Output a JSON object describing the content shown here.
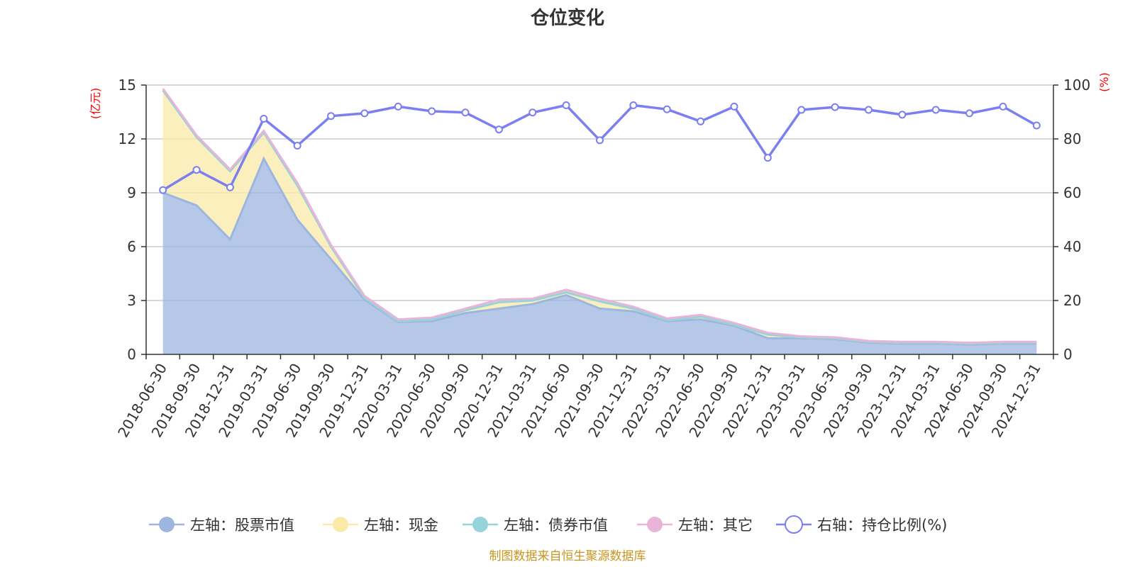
{
  "chart_data": {
    "type": "area",
    "title": "仓位变化",
    "source_note": "制图数据来自恒生聚源数据库",
    "left_axis": {
      "unit": "(亿元)",
      "ylim": [
        0,
        15
      ],
      "ticks": [
        "0",
        "3",
        "6",
        "9",
        "12",
        "15"
      ]
    },
    "right_axis": {
      "unit": "(%)",
      "ylim": [
        0,
        100
      ],
      "ticks": [
        "0",
        "20",
        "40",
        "60",
        "80",
        "100"
      ]
    },
    "categories": [
      "2018-06-30",
      "2018-09-30",
      "2018-12-31",
      "2019-03-31",
      "2019-06-30",
      "2019-09-30",
      "2019-12-31",
      "2020-03-31",
      "2020-06-30",
      "2020-09-30",
      "2020-12-31",
      "2021-03-31",
      "2021-06-30",
      "2021-09-30",
      "2021-12-31",
      "2022-03-31",
      "2022-06-30",
      "2022-09-30",
      "2022-12-31",
      "2023-03-31",
      "2023-06-30",
      "2023-09-30",
      "2023-12-31",
      "2024-03-31",
      "2024-06-30",
      "2024-09-30",
      "2024-12-31"
    ],
    "series": [
      {
        "name": "左轴：股票市值",
        "axis": "left",
        "kind": "stacked-area",
        "color": "#9db6e0",
        "values": [
          9.0,
          8.3,
          6.4,
          10.9,
          7.5,
          5.3,
          3.05,
          1.8,
          1.85,
          2.3,
          2.55,
          2.8,
          3.3,
          2.55,
          2.4,
          1.85,
          1.95,
          1.6,
          0.9,
          0.9,
          0.85,
          0.65,
          0.6,
          0.6,
          0.55,
          0.6,
          0.6
        ]
      },
      {
        "name": "左轴：现金",
        "axis": "left",
        "kind": "stacked-area",
        "color": "#fbe9a8",
        "values": [
          5.7,
          3.8,
          3.8,
          1.45,
          1.9,
          0.7,
          0.1,
          0.05,
          0.1,
          0.15,
          0.35,
          0.2,
          0.15,
          0.4,
          0.15,
          0.05,
          0.15,
          0.05,
          0.2,
          0.05,
          0.05,
          0.05,
          0.05,
          0.05,
          0.05,
          0.05,
          0.05
        ]
      },
      {
        "name": "左轴：债券市值",
        "axis": "left",
        "kind": "stacked-area",
        "color": "#96d4d9",
        "values": [
          0,
          0,
          0,
          0,
          0,
          0,
          0,
          0,
          0,
          0,
          0,
          0,
          0,
          0,
          0,
          0,
          0,
          0,
          0,
          0,
          0,
          0,
          0,
          0,
          0,
          0,
          0
        ]
      },
      {
        "name": "左轴：其它",
        "axis": "left",
        "kind": "stacked-area",
        "color": "#e8b4d8",
        "values": [
          0.1,
          0.1,
          0.1,
          0.1,
          0.15,
          0.1,
          0.1,
          0.1,
          0.1,
          0.1,
          0.15,
          0.1,
          0.15,
          0.15,
          0.1,
          0.1,
          0.1,
          0.1,
          0.1,
          0.05,
          0.05,
          0.05,
          0.05,
          0.05,
          0.05,
          0.05,
          0.05
        ]
      },
      {
        "name": "右轴：持仓比例(%)",
        "axis": "right",
        "kind": "line",
        "color": "#7b7ff0",
        "values": [
          61,
          68.5,
          62,
          87.5,
          77.5,
          88.5,
          89.5,
          92,
          90.3,
          89.8,
          83.5,
          89.8,
          92.5,
          79.5,
          92.5,
          91,
          86.5,
          92,
          73,
          90.8,
          91.8,
          90.8,
          89,
          90.8,
          89.5,
          92,
          85
        ]
      }
    ],
    "legend": [
      {
        "label": "左轴：股票市值",
        "color": "#9db6e0",
        "marker": "filled"
      },
      {
        "label": "左轴：现金",
        "color": "#fbe9a8",
        "marker": "filled"
      },
      {
        "label": "左轴：债券市值",
        "color": "#96d4d9",
        "marker": "filled"
      },
      {
        "label": "左轴：其它",
        "color": "#e8b4d8",
        "marker": "filled"
      },
      {
        "label": "右轴：持仓比例(%)",
        "color": "#7b7ff0",
        "marker": "hollow"
      }
    ],
    "legend_position": "bottom"
  }
}
